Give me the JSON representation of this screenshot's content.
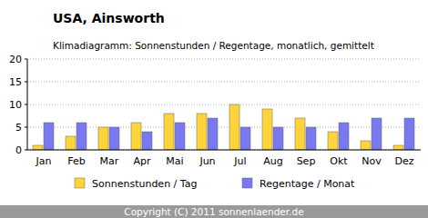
{
  "chart_data": {
    "type": "bar",
    "title": "USA, Ainsworth",
    "subtitle": "Klimadiagramm: Sonnenstunden / Regentage, monatlich, gemittelt",
    "footer": "Copyright (C) 2011 sonnenlaender.de",
    "categories": [
      "Jan",
      "Feb",
      "Mar",
      "Apr",
      "Mai",
      "Jun",
      "Jul",
      "Aug",
      "Sep",
      "Okt",
      "Nov",
      "Dez"
    ],
    "series": [
      {
        "name": "Sonnenstunden / Tag",
        "color": "#ffd43a",
        "values": [
          1,
          3,
          5,
          6,
          8,
          8,
          10,
          9,
          7,
          4,
          2,
          1
        ]
      },
      {
        "name": "Regentage / Monat",
        "color": "#7878f0",
        "values": [
          6,
          6,
          5,
          4,
          6,
          7,
          5,
          5,
          5,
          6,
          7,
          7
        ]
      }
    ],
    "ylim": [
      0,
      20
    ],
    "yticks": [
      0,
      5,
      10,
      15,
      20
    ],
    "grid": true,
    "legend": "bottom"
  }
}
